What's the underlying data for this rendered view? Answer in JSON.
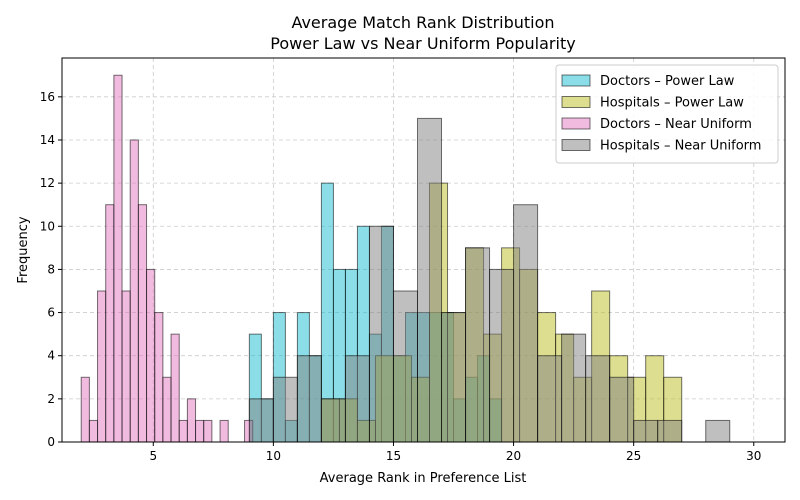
{
  "chart_data": {
    "type": "bar",
    "title": "Average Match Rank Distribution",
    "subtitle": "Power Law vs Near Uniform Popularity",
    "xlabel": "Average Rank in Preference List",
    "ylabel": "Frequency",
    "xlim": [
      1.2,
      31.3
    ],
    "ylim": [
      0,
      17.8
    ],
    "xticks": [
      5,
      10,
      15,
      20,
      25,
      30
    ],
    "yticks": [
      0,
      2,
      4,
      6,
      8,
      10,
      12,
      14,
      16
    ],
    "grid": true,
    "legend_position": "top-right",
    "series": [
      {
        "name": "Doctors – Power Law",
        "color": "#17becf",
        "bin_width": 0.5,
        "bins": [
          [
            9.0,
            5
          ],
          [
            9.5,
            2
          ],
          [
            10.0,
            6
          ],
          [
            10.5,
            1
          ],
          [
            11.0,
            6
          ],
          [
            11.5,
            4
          ],
          [
            12.0,
            12
          ],
          [
            12.5,
            8
          ],
          [
            13.0,
            8
          ],
          [
            13.5,
            10
          ],
          [
            14.0,
            5
          ],
          [
            14.5,
            10
          ],
          [
            15.0,
            4
          ],
          [
            15.5,
            6
          ],
          [
            16.0,
            6
          ],
          [
            16.5,
            6
          ],
          [
            17.0,
            6
          ],
          [
            17.5,
            2
          ],
          [
            18.0,
            3
          ],
          [
            18.5,
            4
          ],
          [
            19.0,
            2
          ]
        ]
      },
      {
        "name": "Hospitals – Power Law",
        "color": "#bcbd22",
        "bin_width": 0.75,
        "bins": [
          [
            12.0,
            2
          ],
          [
            12.75,
            2
          ],
          [
            13.5,
            1
          ],
          [
            14.25,
            4
          ],
          [
            15.0,
            4
          ],
          [
            15.75,
            3
          ],
          [
            16.5,
            12
          ],
          [
            17.25,
            6
          ],
          [
            18.0,
            9
          ],
          [
            18.75,
            5
          ],
          [
            19.5,
            9
          ],
          [
            20.25,
            8
          ],
          [
            21.0,
            6
          ],
          [
            21.75,
            5
          ],
          [
            22.5,
            3
          ],
          [
            23.25,
            7
          ],
          [
            24.0,
            4
          ],
          [
            24.75,
            3
          ],
          [
            25.5,
            4
          ],
          [
            26.25,
            3
          ]
        ]
      },
      {
        "name": "Doctors – Near Uniform",
        "color": "#e377c2",
        "bin_width": 0.34,
        "bins": [
          [
            2.0,
            3
          ],
          [
            2.34,
            1
          ],
          [
            2.68,
            7
          ],
          [
            3.02,
            11
          ],
          [
            3.36,
            17
          ],
          [
            3.7,
            7
          ],
          [
            4.04,
            14
          ],
          [
            4.38,
            11
          ],
          [
            4.72,
            8
          ],
          [
            5.06,
            6
          ],
          [
            5.4,
            3
          ],
          [
            5.74,
            5
          ],
          [
            6.08,
            1
          ],
          [
            6.42,
            2
          ],
          [
            6.76,
            1
          ],
          [
            7.1,
            1
          ],
          [
            7.44,
            0
          ],
          [
            7.78,
            1
          ],
          [
            8.12,
            0
          ],
          [
            8.46,
            0
          ],
          [
            8.8,
            1
          ]
        ]
      },
      {
        "name": "Hospitals – Near Uniform",
        "color": "#7f7f7f",
        "bin_width": 1.0,
        "bins": [
          [
            9.0,
            2
          ],
          [
            10.0,
            3
          ],
          [
            11.0,
            4
          ],
          [
            12.0,
            2
          ],
          [
            13.0,
            4
          ],
          [
            14.0,
            10
          ],
          [
            15.0,
            7
          ],
          [
            16.0,
            15
          ],
          [
            17.0,
            6
          ],
          [
            18.0,
            9
          ],
          [
            19.0,
            8
          ],
          [
            20.0,
            11
          ],
          [
            21.0,
            4
          ],
          [
            22.0,
            5
          ],
          [
            23.0,
            4
          ],
          [
            24.0,
            3
          ],
          [
            25.0,
            1
          ],
          [
            26.0,
            1
          ],
          [
            27.0,
            0
          ],
          [
            28.0,
            1
          ]
        ]
      }
    ]
  }
}
